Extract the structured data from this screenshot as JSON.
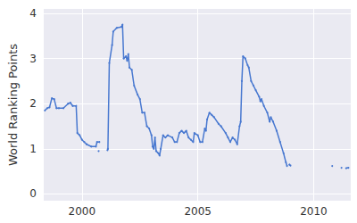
{
  "chart_data": {
    "type": "line",
    "y_label": "World Ranking Points",
    "color": "#4878d0",
    "grid": true,
    "xlim": [
      1998.35,
      2011.6
    ],
    "xticks": [
      2000,
      2005,
      2010
    ],
    "ylim": [
      -0.15,
      4.1
    ],
    "yticks": [
      0,
      1,
      2,
      3,
      4
    ],
    "x": [
      1998.4,
      1998.5,
      1998.6,
      1998.7,
      1998.8,
      1998.9,
      1999.0,
      1999.2,
      1999.4,
      1999.5,
      1999.6,
      1999.75,
      1999.8,
      1999.9,
      2000.0,
      2000.1,
      2000.2,
      2000.4,
      2000.6,
      2000.65,
      2000.75,
      2000.76,
      2000.72,
      2000.9,
      2001.1,
      2001.12,
      2001.18,
      2001.3,
      2001.35,
      2001.5,
      2001.7,
      2001.75,
      2001.8,
      2001.9,
      2001.95,
      2002.0,
      2002.05,
      2002.15,
      2002.25,
      2002.4,
      2002.5,
      2002.6,
      2002.7,
      2002.8,
      2002.9,
      2003.0,
      2003.05,
      2003.1,
      2003.15,
      2003.2,
      2003.3,
      2003.35,
      2003.4,
      2003.5,
      2003.6,
      2003.7,
      2003.9,
      2004.0,
      2004.1,
      2004.2,
      2004.3,
      2004.4,
      2004.5,
      2004.6,
      2004.7,
      2004.8,
      2004.85,
      2005.0,
      2005.1,
      2005.2,
      2005.3,
      2005.35,
      2005.4,
      2005.5,
      2005.6,
      2005.7,
      2005.9,
      2006.0,
      2006.2,
      2006.3,
      2006.4,
      2006.5,
      2006.6,
      2006.7,
      2006.8,
      2006.85,
      2006.9,
      2006.95,
      2007.05,
      2007.15,
      2007.2,
      2007.3,
      2007.4,
      2007.5,
      2007.65,
      2007.7,
      2007.75,
      2007.85,
      2008.0,
      2008.1,
      2008.15,
      2008.25,
      2008.4,
      2008.55,
      2008.7,
      2008.8,
      2008.85,
      2008.9,
      2008.95,
      2009.0,
      2009.5,
      2010.8,
      2011.0,
      2011.2,
      2011.3,
      2011.4,
      2011.5
    ],
    "values": [
      1.85,
      1.9,
      1.92,
      2.12,
      2.1,
      1.9,
      1.9,
      1.9,
      2.0,
      2.02,
      1.95,
      1.95,
      1.35,
      1.3,
      1.2,
      1.15,
      1.1,
      1.05,
      1.05,
      1.15,
      1.15,
      null,
      0.95,
      null,
      0.97,
      1.0,
      2.9,
      3.3,
      3.6,
      3.68,
      3.7,
      3.75,
      3.0,
      3.05,
      2.95,
      3.1,
      2.8,
      2.75,
      2.4,
      2.2,
      2.1,
      1.8,
      1.8,
      1.5,
      1.45,
      1.3,
      1.05,
      1.0,
      1.25,
      0.95,
      0.9,
      0.85,
      1.0,
      1.3,
      1.25,
      1.3,
      1.25,
      1.15,
      1.15,
      1.35,
      1.4,
      1.35,
      1.4,
      1.25,
      1.2,
      1.15,
      1.35,
      1.3,
      1.15,
      1.15,
      1.45,
      1.4,
      1.65,
      1.8,
      1.75,
      1.7,
      1.55,
      1.5,
      1.35,
      1.25,
      1.15,
      1.25,
      1.2,
      1.1,
      1.5,
      1.6,
      2.5,
      3.05,
      3.0,
      2.85,
      2.8,
      2.5,
      2.4,
      2.3,
      2.15,
      2.05,
      2.1,
      1.95,
      1.8,
      1.6,
      1.7,
      1.6,
      1.4,
      1.15,
      0.9,
      0.7,
      0.62,
      null,
      0.65,
      0.63,
      null,
      0.62,
      null,
      0.58,
      null,
      0.57,
      0.58
    ]
  }
}
